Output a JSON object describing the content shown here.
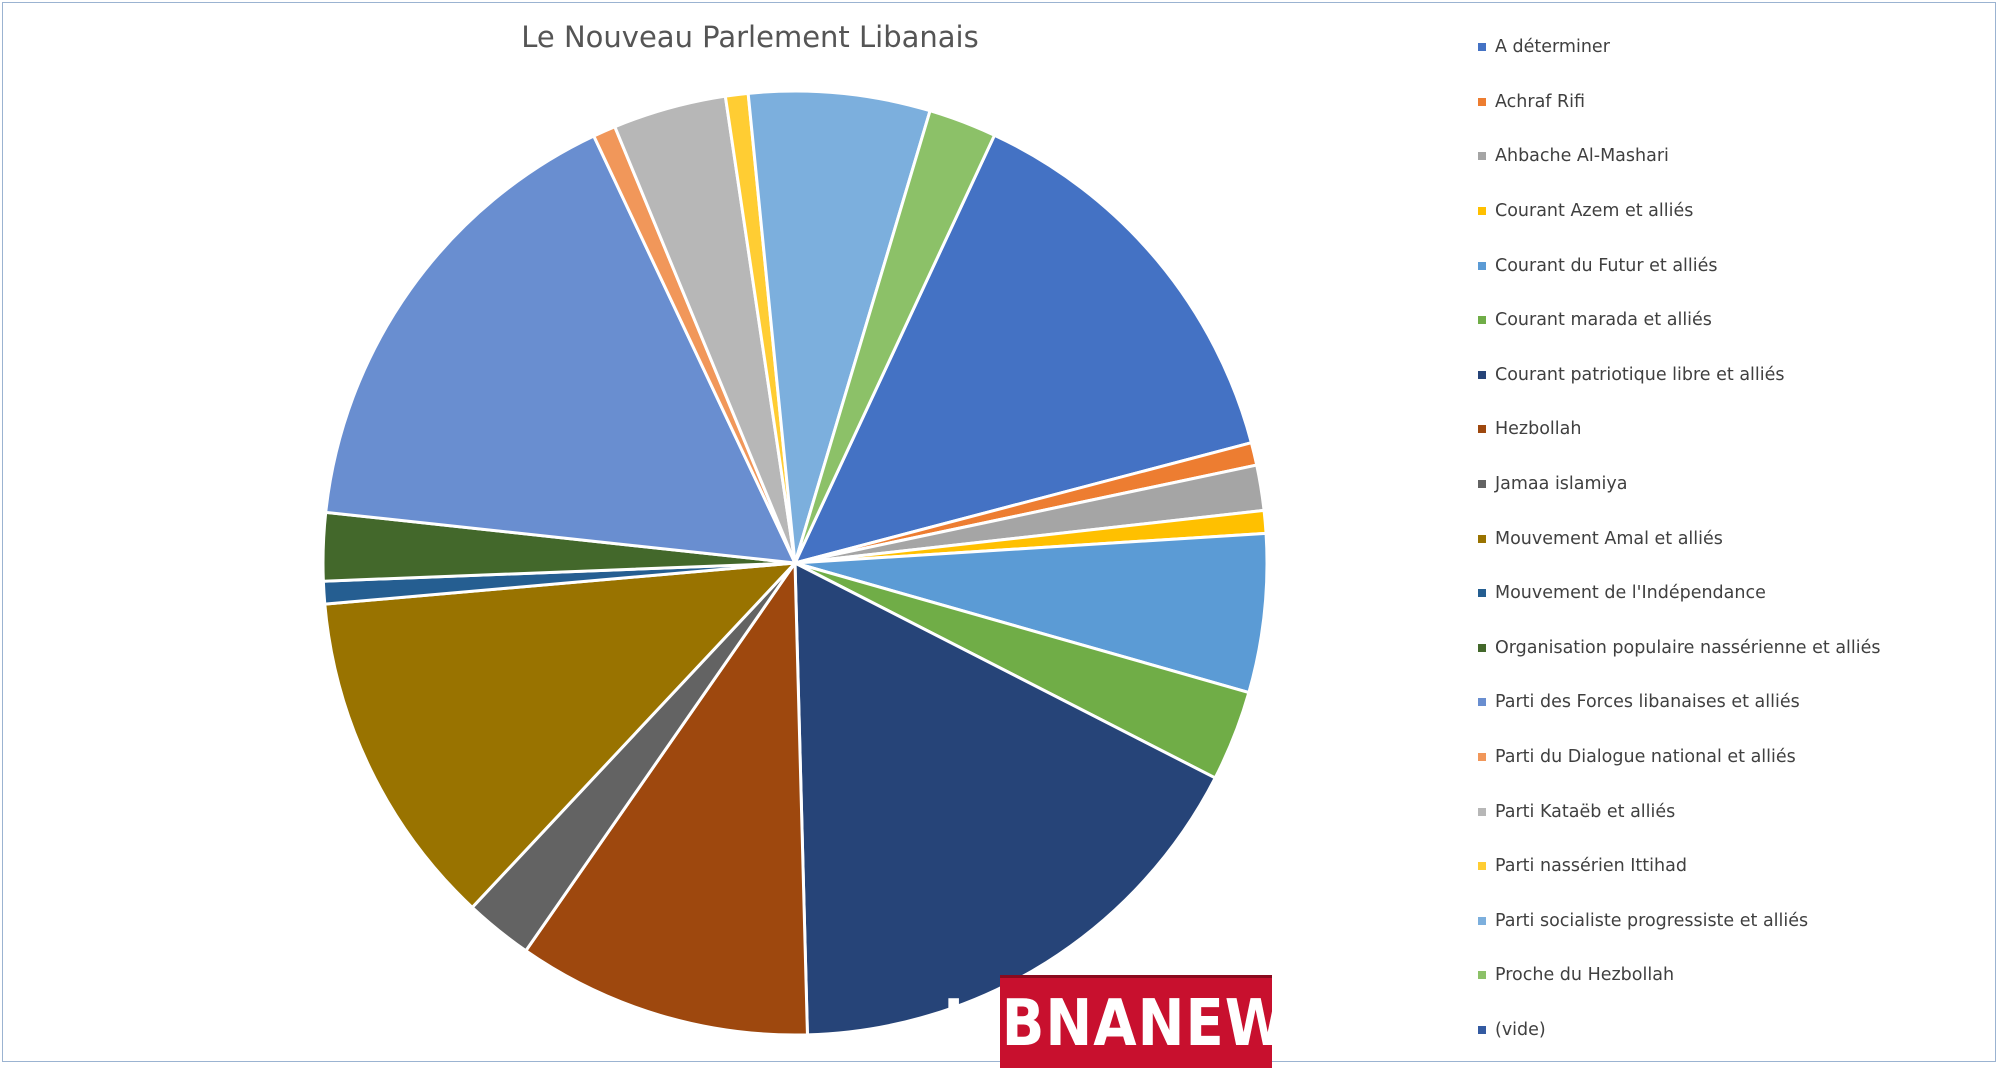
{
  "chart_data": {
    "type": "pie",
    "title": "Le Nouveau Parlement Libanais",
    "legend_position": "right",
    "slices": [
      {
        "name": "A déterminer",
        "value": 18,
        "color": "#4472C4"
      },
      {
        "name": "Achraf Rifi",
        "value": 1,
        "color": "#ED7D31"
      },
      {
        "name": "Ahbache Al-Mashari",
        "value": 2,
        "color": "#A5A5A5"
      },
      {
        "name": "Courant Azem et alliés",
        "value": 1,
        "color": "#FFC000"
      },
      {
        "name": "Courant du Futur et alliés",
        "value": 7,
        "color": "#5B9BD5"
      },
      {
        "name": "Courant marada et alliés",
        "value": 4,
        "color": "#70AD47"
      },
      {
        "name": "Courant patriotique libre et alliés",
        "value": 22,
        "color": "#264478"
      },
      {
        "name": "Hezbollah",
        "value": 13,
        "color": "#9E480E"
      },
      {
        "name": "Jamaa islamiya",
        "value": 3,
        "color": "#636363"
      },
      {
        "name": "Mouvement Amal et alliés",
        "value": 15,
        "color": "#997300"
      },
      {
        "name": "Mouvement de l'Indépendance",
        "value": 1,
        "color": "#255E91"
      },
      {
        "name": "Organisation populaire nassérienne et alliés",
        "value": 3,
        "color": "#43682B"
      },
      {
        "name": "Parti des Forces libanaises et alliés",
        "value": 21,
        "color": "#698ED0"
      },
      {
        "name": "Parti du Dialogue national et alliés",
        "value": 1,
        "color": "#F1975A"
      },
      {
        "name": "Parti Kataëb et alliés",
        "value": 5,
        "color": "#B7B7B7"
      },
      {
        "name": "Parti nassérien Ittihad",
        "value": 1,
        "color": "#FFCD33"
      },
      {
        "name": "Parti socialiste progressiste et alliés",
        "value": 8,
        "color": "#7CAFDD"
      },
      {
        "name": "Proche du Hezbollah",
        "value": 3,
        "color": "#8CC168"
      },
      {
        "name": "(vide)",
        "value": 0,
        "color": "#335AA1"
      }
    ]
  },
  "logo": {
    "text": "LIBNANEWS"
  }
}
